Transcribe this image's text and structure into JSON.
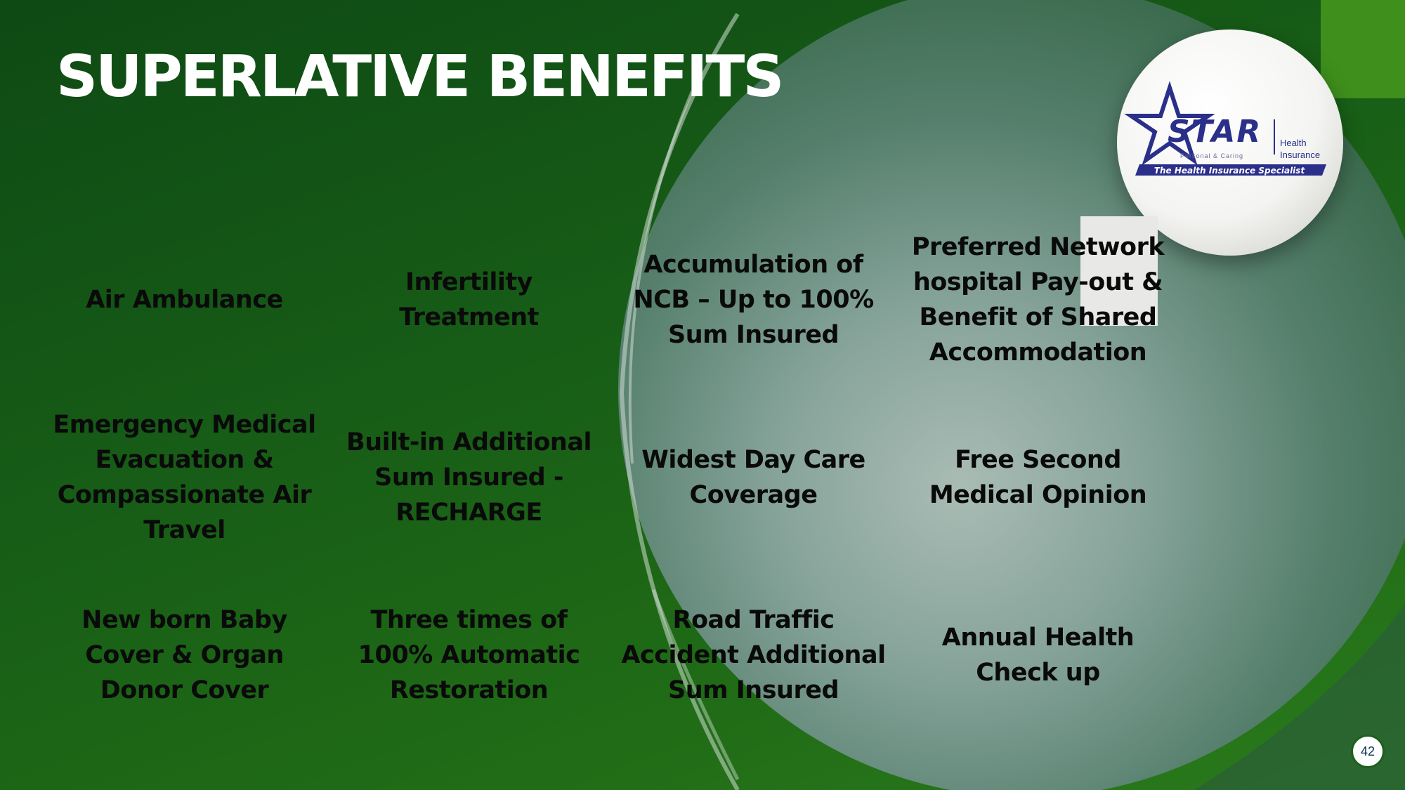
{
  "slide": {
    "title": "SUPERLATIVE BENEFITS",
    "page_number": "42"
  },
  "logo": {
    "brand": "STAR",
    "tagline_small": "Personal & Caring",
    "side_top": "Health",
    "side_bottom": "Insurance",
    "banner": "The Health Insurance Specialist",
    "icon": "star-icon"
  },
  "benefits": [
    "Air Ambulance",
    "Infertility Treatment",
    "Accumulation of NCB – Up to 100% Sum Insured",
    "Preferred Network hospital Pay-out & Benefit of Shared Accommodation",
    "Emergency Medical Evacuation & Compassionate Air Travel",
    "Built-in Additional Sum Insured - RECHARGE",
    "Widest Day Care Coverage",
    "Free Second Medical Opinion",
    "New born Baby Cover & Organ Donor Cover",
    "Three times of 100% Automatic Restoration",
    "Road Traffic Accident Additional Sum Insured",
    "Annual Health Check up"
  ],
  "colors": {
    "background": "#175c17",
    "title": "#ffffff",
    "text": "#0a0a0a",
    "logo_blue": "#2a2f8a"
  }
}
